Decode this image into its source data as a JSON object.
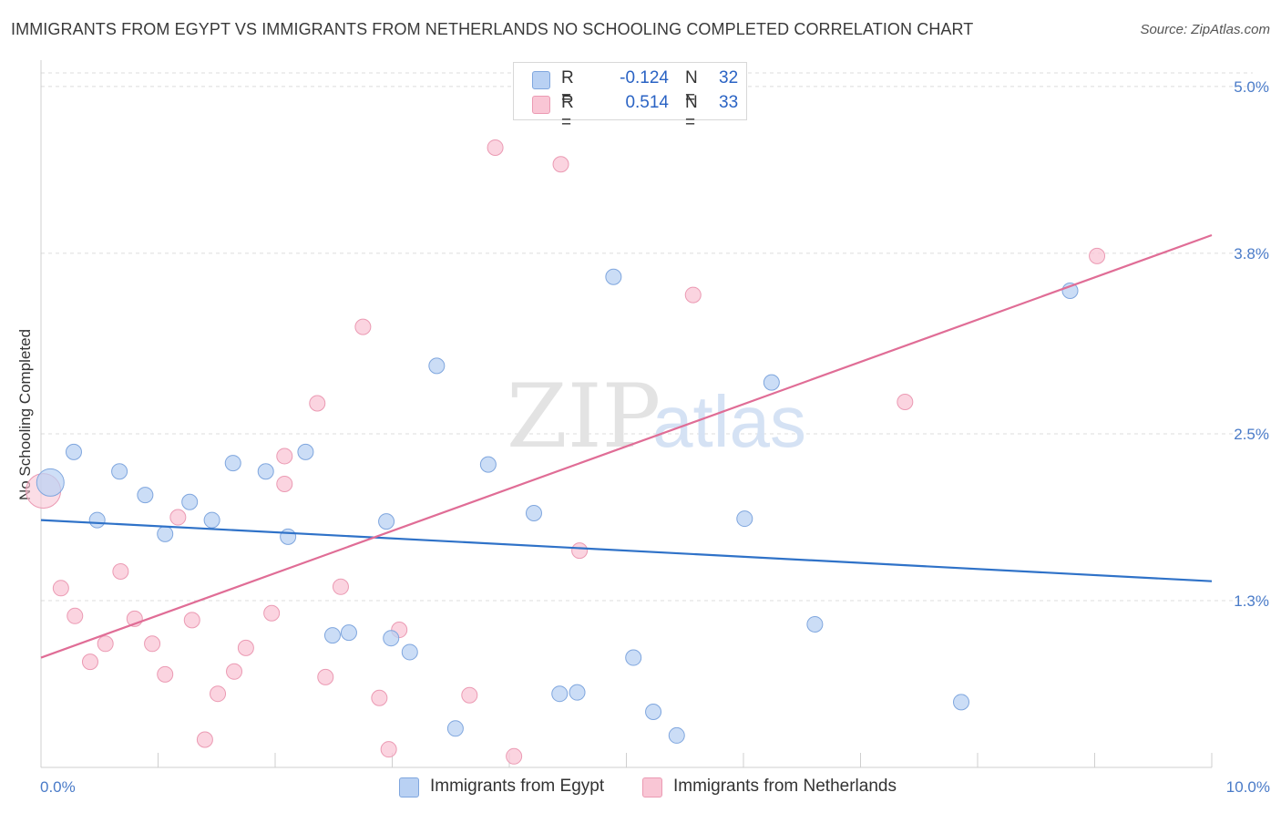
{
  "header": {
    "title": "IMMIGRANTS FROM EGYPT VS IMMIGRANTS FROM NETHERLANDS NO SCHOOLING COMPLETED CORRELATION CHART",
    "source": "Source: ZipAtlas.com"
  },
  "watermark": {
    "zip": "ZIP",
    "atlas": "atlas"
  },
  "legend": {
    "egypt": {
      "r_label": "R =",
      "r_value": "-0.124",
      "n_label": "N =",
      "n_value": "32"
    },
    "netherlands": {
      "r_label": "R =",
      "r_value": "0.514",
      "n_label": "N =",
      "n_value": "33"
    }
  },
  "bottom_legend": {
    "egypt": "Immigrants from Egypt",
    "netherlands": "Immigrants from Netherlands"
  },
  "colors": {
    "egypt_fill": "#b9d1f3",
    "egypt_stroke": "#7fa6de",
    "egypt_line": "#2f72c8",
    "neth_fill": "#f9c6d5",
    "neth_stroke": "#eb9ab3",
    "neth_line": "#e06d96",
    "tick_text": "#4a7bc8",
    "grid": "#dcdcdc"
  },
  "chart_data": {
    "type": "scatter",
    "title": "IMMIGRANTS FROM EGYPT VS IMMIGRANTS FROM NETHERLANDS NO SCHOOLING COMPLETED CORRELATION CHART",
    "xlabel": "",
    "ylabel": "No Schooling Completed",
    "xlim": [
      0,
      10
    ],
    "ylim": [
      0.1,
      5.15
    ],
    "x_tick_labels": [
      {
        "value": 0,
        "label": "0.0%"
      },
      {
        "value": 10,
        "label": "10.0%"
      }
    ],
    "y_ticks": [
      {
        "value": 1.3,
        "label": "1.3%"
      },
      {
        "value": 2.5,
        "label": "2.5%"
      },
      {
        "value": 3.8,
        "label": "3.8%"
      },
      {
        "value": 5.0,
        "label": "5.0%"
      }
    ],
    "series": [
      {
        "name": "Immigrants from Egypt",
        "trend": [
          {
            "x": 0,
            "y": 1.88
          },
          {
            "x": 10,
            "y": 1.44
          }
        ],
        "points": [
          {
            "x": 0.08,
            "y": 2.15,
            "big": true
          },
          {
            "x": 0.28,
            "y": 2.37
          },
          {
            "x": 0.48,
            "y": 1.88
          },
          {
            "x": 0.67,
            "y": 2.23
          },
          {
            "x": 0.89,
            "y": 2.06
          },
          {
            "x": 1.06,
            "y": 1.78
          },
          {
            "x": 1.27,
            "y": 2.01
          },
          {
            "x": 1.46,
            "y": 1.88
          },
          {
            "x": 1.64,
            "y": 2.29
          },
          {
            "x": 1.92,
            "y": 2.23
          },
          {
            "x": 2.11,
            "y": 1.76
          },
          {
            "x": 2.26,
            "y": 2.37
          },
          {
            "x": 2.49,
            "y": 1.05
          },
          {
            "x": 2.63,
            "y": 1.07
          },
          {
            "x": 2.95,
            "y": 1.87
          },
          {
            "x": 2.99,
            "y": 1.03
          },
          {
            "x": 3.15,
            "y": 0.93
          },
          {
            "x": 3.38,
            "y": 2.99
          },
          {
            "x": 3.54,
            "y": 0.38
          },
          {
            "x": 3.82,
            "y": 2.28
          },
          {
            "x": 4.21,
            "y": 1.93
          },
          {
            "x": 4.43,
            "y": 0.63
          },
          {
            "x": 4.58,
            "y": 0.64
          },
          {
            "x": 4.89,
            "y": 3.63
          },
          {
            "x": 5.06,
            "y": 0.89
          },
          {
            "x": 5.23,
            "y": 0.5
          },
          {
            "x": 5.43,
            "y": 0.33
          },
          {
            "x": 6.01,
            "y": 1.89
          },
          {
            "x": 6.24,
            "y": 2.87
          },
          {
            "x": 6.61,
            "y": 1.13
          },
          {
            "x": 7.86,
            "y": 0.57
          },
          {
            "x": 8.79,
            "y": 3.53
          }
        ]
      },
      {
        "name": "Immigrants from Netherlands",
        "trend": [
          {
            "x": 0,
            "y": 0.89
          },
          {
            "x": 10,
            "y": 3.93
          }
        ],
        "points": [
          {
            "x": 0.02,
            "y": 2.09,
            "big": true
          },
          {
            "x": 0.17,
            "y": 1.39
          },
          {
            "x": 0.29,
            "y": 1.19
          },
          {
            "x": 0.42,
            "y": 0.86
          },
          {
            "x": 0.55,
            "y": 0.99
          },
          {
            "x": 0.68,
            "y": 1.51
          },
          {
            "x": 0.8,
            "y": 1.17
          },
          {
            "x": 0.95,
            "y": 0.99
          },
          {
            "x": 1.06,
            "y": 0.77
          },
          {
            "x": 1.17,
            "y": 1.9
          },
          {
            "x": 1.29,
            "y": 1.16
          },
          {
            "x": 1.4,
            "y": 0.3
          },
          {
            "x": 1.51,
            "y": 0.63
          },
          {
            "x": 1.65,
            "y": 0.79
          },
          {
            "x": 1.75,
            "y": 0.96
          },
          {
            "x": 1.97,
            "y": 1.21
          },
          {
            "x": 2.08,
            "y": 2.14
          },
          {
            "x": 2.08,
            "y": 2.34
          },
          {
            "x": 2.36,
            "y": 2.72
          },
          {
            "x": 2.43,
            "y": 0.75
          },
          {
            "x": 2.56,
            "y": 1.4
          },
          {
            "x": 2.75,
            "y": 3.27
          },
          {
            "x": 2.89,
            "y": 0.6
          },
          {
            "x": 2.97,
            "y": 0.23
          },
          {
            "x": 3.06,
            "y": 1.09
          },
          {
            "x": 3.66,
            "y": 0.62
          },
          {
            "x": 3.88,
            "y": 4.56
          },
          {
            "x": 4.04,
            "y": 0.18
          },
          {
            "x": 4.44,
            "y": 4.44
          },
          {
            "x": 4.6,
            "y": 1.66
          },
          {
            "x": 5.57,
            "y": 3.5
          },
          {
            "x": 7.38,
            "y": 2.73
          },
          {
            "x": 9.02,
            "y": 3.78
          }
        ]
      }
    ]
  }
}
